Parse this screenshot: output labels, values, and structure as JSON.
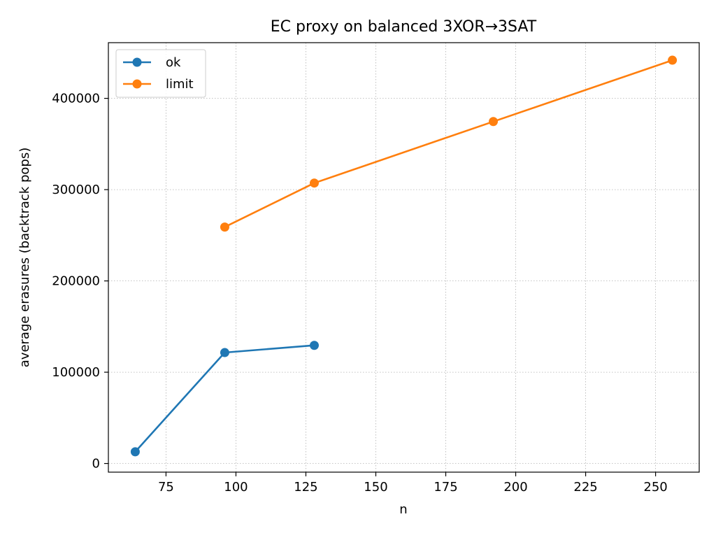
{
  "chart_data": {
    "type": "line",
    "title": "EC proxy on balanced 3XOR→3SAT",
    "xlabel": "n",
    "ylabel": "average erasures (backtrack pops)",
    "xlim": [
      54.4,
      265.6
    ],
    "ylim": [
      -9500,
      461000
    ],
    "xticks": [
      75,
      100,
      125,
      150,
      175,
      200,
      225,
      250
    ],
    "yticks": [
      0,
      100000,
      200000,
      300000,
      400000
    ],
    "grid": true,
    "legend_position": "top-left",
    "series": [
      {
        "name": "ok",
        "color": "#1f77b4",
        "x": [
          64,
          96,
          128
        ],
        "y": [
          12800,
          121500,
          129400
        ]
      },
      {
        "name": "limit",
        "color": "#ff7f0e",
        "x": [
          96,
          128,
          192,
          256
        ],
        "y": [
          259000,
          307200,
          374600,
          441800
        ]
      }
    ]
  }
}
